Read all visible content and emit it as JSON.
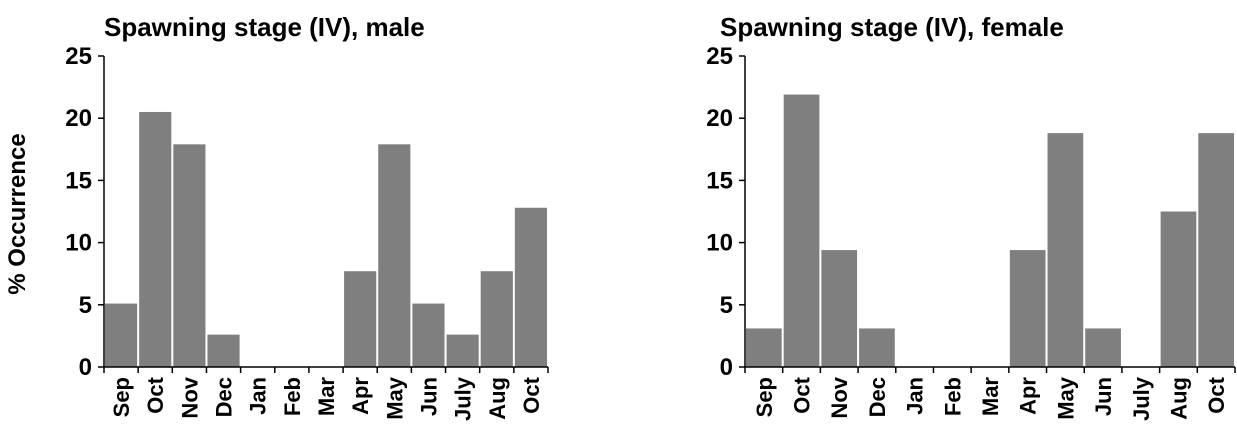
{
  "chart_data": [
    {
      "type": "bar",
      "title": "Spawning stage (IV), male",
      "ylabel": "% Occurrence",
      "xlabel": "",
      "ylim": [
        0,
        25
      ],
      "yticks": [
        0,
        5,
        10,
        15,
        20,
        25
      ],
      "categories": [
        "Sep",
        "Oct",
        "Nov",
        "Dec",
        "Jan",
        "Feb",
        "Mar",
        "Apr",
        "May",
        "Jun",
        "July",
        "Aug",
        "Oct"
      ],
      "values": [
        5.1,
        20.5,
        17.9,
        2.6,
        0,
        0,
        0,
        7.7,
        17.9,
        5.1,
        2.6,
        7.7,
        12.8
      ],
      "bar_color": "#7f7f7f",
      "grid": false
    },
    {
      "type": "bar",
      "title": "Spawning stage (IV), female",
      "ylabel": "",
      "xlabel": "",
      "ylim": [
        0,
        25
      ],
      "yticks": [
        0,
        5,
        10,
        15,
        20,
        25
      ],
      "categories": [
        "Sep",
        "Oct",
        "Nov",
        "Dec",
        "Jan",
        "Feb",
        "Mar",
        "Apr",
        "May",
        "Jun",
        "July",
        "Aug",
        "Oct"
      ],
      "values": [
        3.1,
        21.9,
        9.4,
        3.1,
        0,
        0,
        0,
        9.4,
        18.8,
        3.1,
        0,
        12.5,
        18.8
      ],
      "bar_color": "#7f7f7f",
      "grid": false
    }
  ]
}
